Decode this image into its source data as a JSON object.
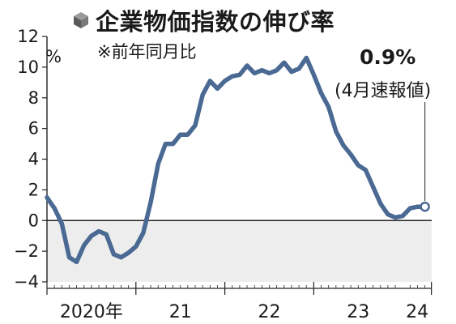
{
  "chart_data": {
    "type": "line",
    "title": "企業物価指数の伸び率",
    "subtitle": "※前年同月比",
    "ylabel": "%",
    "ylim": [
      -4,
      12
    ],
    "yticks": [
      12,
      10,
      8,
      6,
      4,
      2,
      0,
      -2,
      -4
    ],
    "xlabels": [
      "2020年",
      "21",
      "22",
      "23",
      "24"
    ],
    "start_month": "2020-01",
    "series": [
      {
        "color": "#4a6a94",
        "values": [
          1.5,
          0.8,
          -0.2,
          -2.4,
          -2.7,
          -1.6,
          -1.0,
          -0.7,
          -0.9,
          -2.2,
          -2.4,
          -2.1,
          -1.7,
          -0.8,
          1.2,
          3.7,
          5.0,
          5.0,
          5.6,
          5.6,
          6.2,
          8.2,
          9.1,
          8.6,
          9.1,
          9.4,
          9.5,
          10.1,
          9.6,
          9.8,
          9.6,
          9.8,
          10.3,
          9.7,
          9.9,
          10.6,
          9.5,
          8.3,
          7.4,
          5.8,
          4.9,
          4.3,
          3.6,
          3.3,
          2.2,
          1.1,
          0.4,
          0.2,
          0.3,
          0.8,
          0.9,
          0.9
        ]
      }
    ],
    "annotation": {
      "value": "0.9%",
      "label": "(4月速報値)"
    },
    "negative_band_color": "#ededed"
  }
}
